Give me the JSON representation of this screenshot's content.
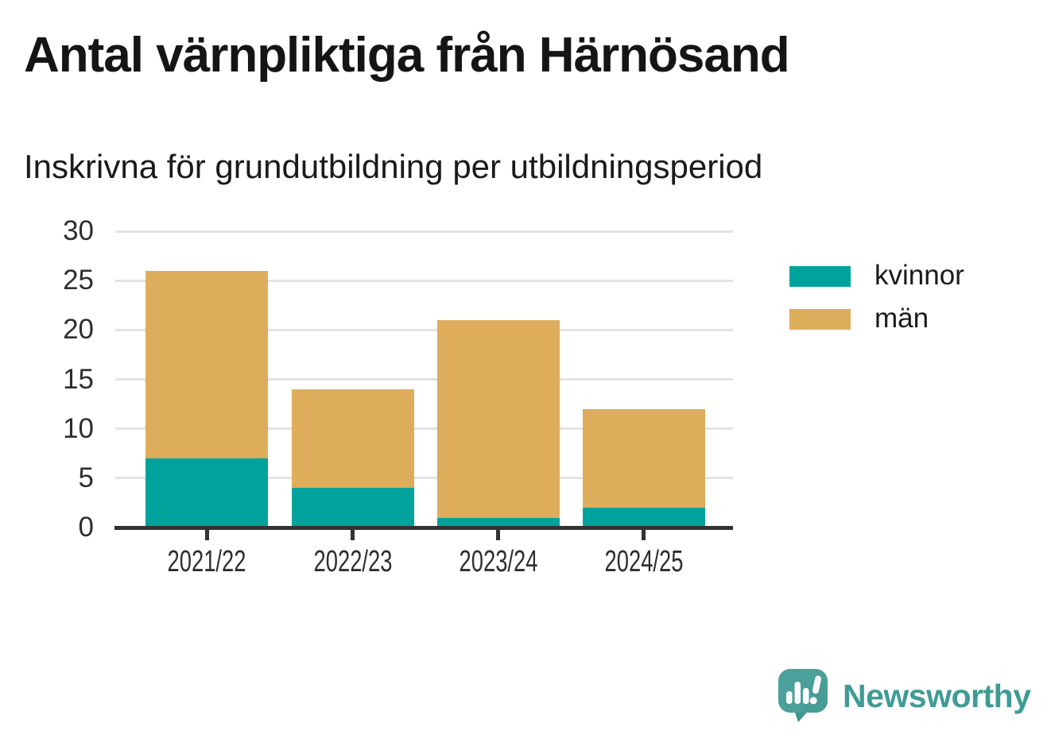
{
  "chart_data": {
    "type": "bar",
    "stacked": true,
    "title": "Antal värnpliktiga från Härnösand",
    "subtitle": "Inskrivna för grundutbildning per utbildningsperiod",
    "categories": [
      "2021/22",
      "2022/23",
      "2023/24",
      "2024/25"
    ],
    "series": [
      {
        "name": "kvinnor",
        "color": "#00a39c",
        "values": [
          7,
          4,
          1,
          2
        ]
      },
      {
        "name": "män",
        "color": "#dead5c",
        "values": [
          19,
          10,
          20,
          10
        ]
      }
    ],
    "totals": [
      26,
      14,
      21,
      12
    ],
    "ylim": [
      0,
      30
    ],
    "yticks": [
      0,
      5,
      10,
      15,
      20,
      25,
      30
    ],
    "grid": true,
    "legend_position": "right"
  },
  "brand": {
    "name": "Newsworthy",
    "color": "#3f9b95",
    "icon": "speech-bubble-bar-chart-exclamation"
  }
}
